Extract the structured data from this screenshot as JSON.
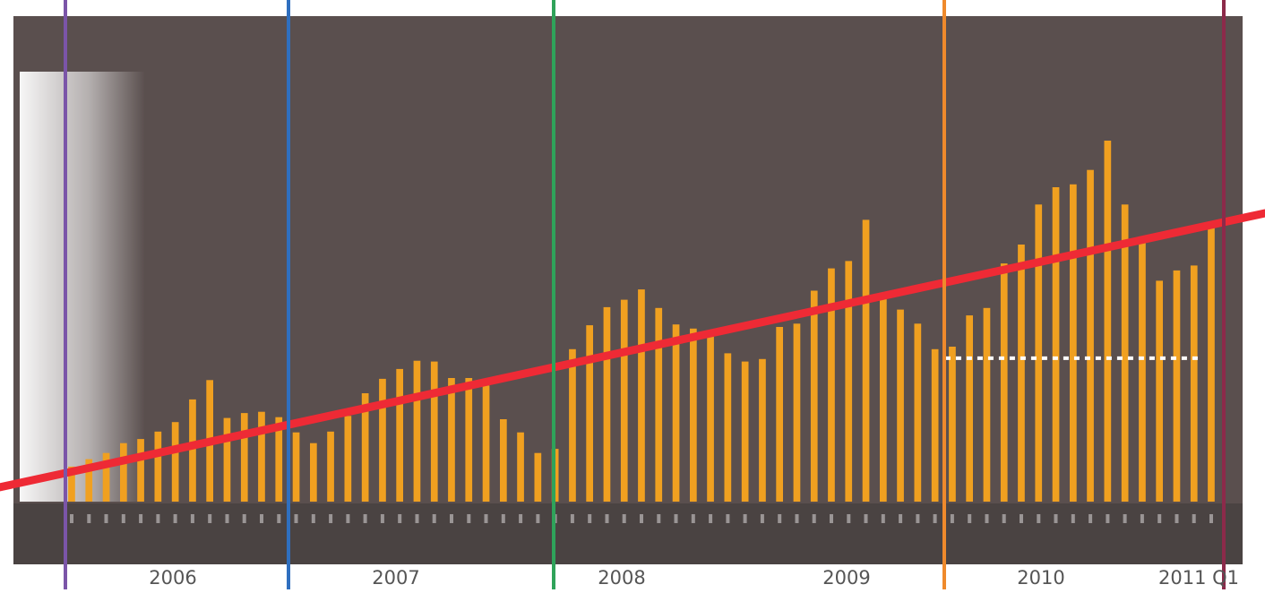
{
  "chart_data": {
    "type": "bar",
    "title": "",
    "subtitle": "",
    "xlabel": "",
    "ylabel": "",
    "ylim": [
      0,
      1000
    ],
    "grid": false,
    "legend": "none",
    "bar_color": "#f0a020",
    "background_color": "#5a4f4e",
    "trend_color": "#ee2a35",
    "mean_line_color": "#ffffff",
    "series": [
      {
        "values": [
          85,
          103,
          118,
          142,
          152,
          170,
          193,
          248,
          295,
          203,
          215,
          218,
          205,
          168,
          142,
          170,
          208,
          263,
          298,
          322,
          342,
          340,
          300,
          300,
          282,
          200,
          168,
          118,
          128,
          370,
          428,
          472,
          490,
          515,
          470,
          430,
          420,
          408,
          360,
          340,
          346,
          424,
          432,
          512,
          566,
          584,
          684,
          498,
          466,
          432,
          370,
          376,
          452,
          470,
          578,
          624,
          721,
          763,
          770,
          805,
          876,
          721,
          640,
          536,
          561,
          573,
          671
        ]
      }
    ],
    "year_labels": [
      "2006",
      "2007",
      "2008",
      "2009",
      "2010",
      "2011 Q1"
    ],
    "mean_line_value": 348,
    "trend_line": {
      "start_value": 35,
      "end_value": 700
    }
  }
}
